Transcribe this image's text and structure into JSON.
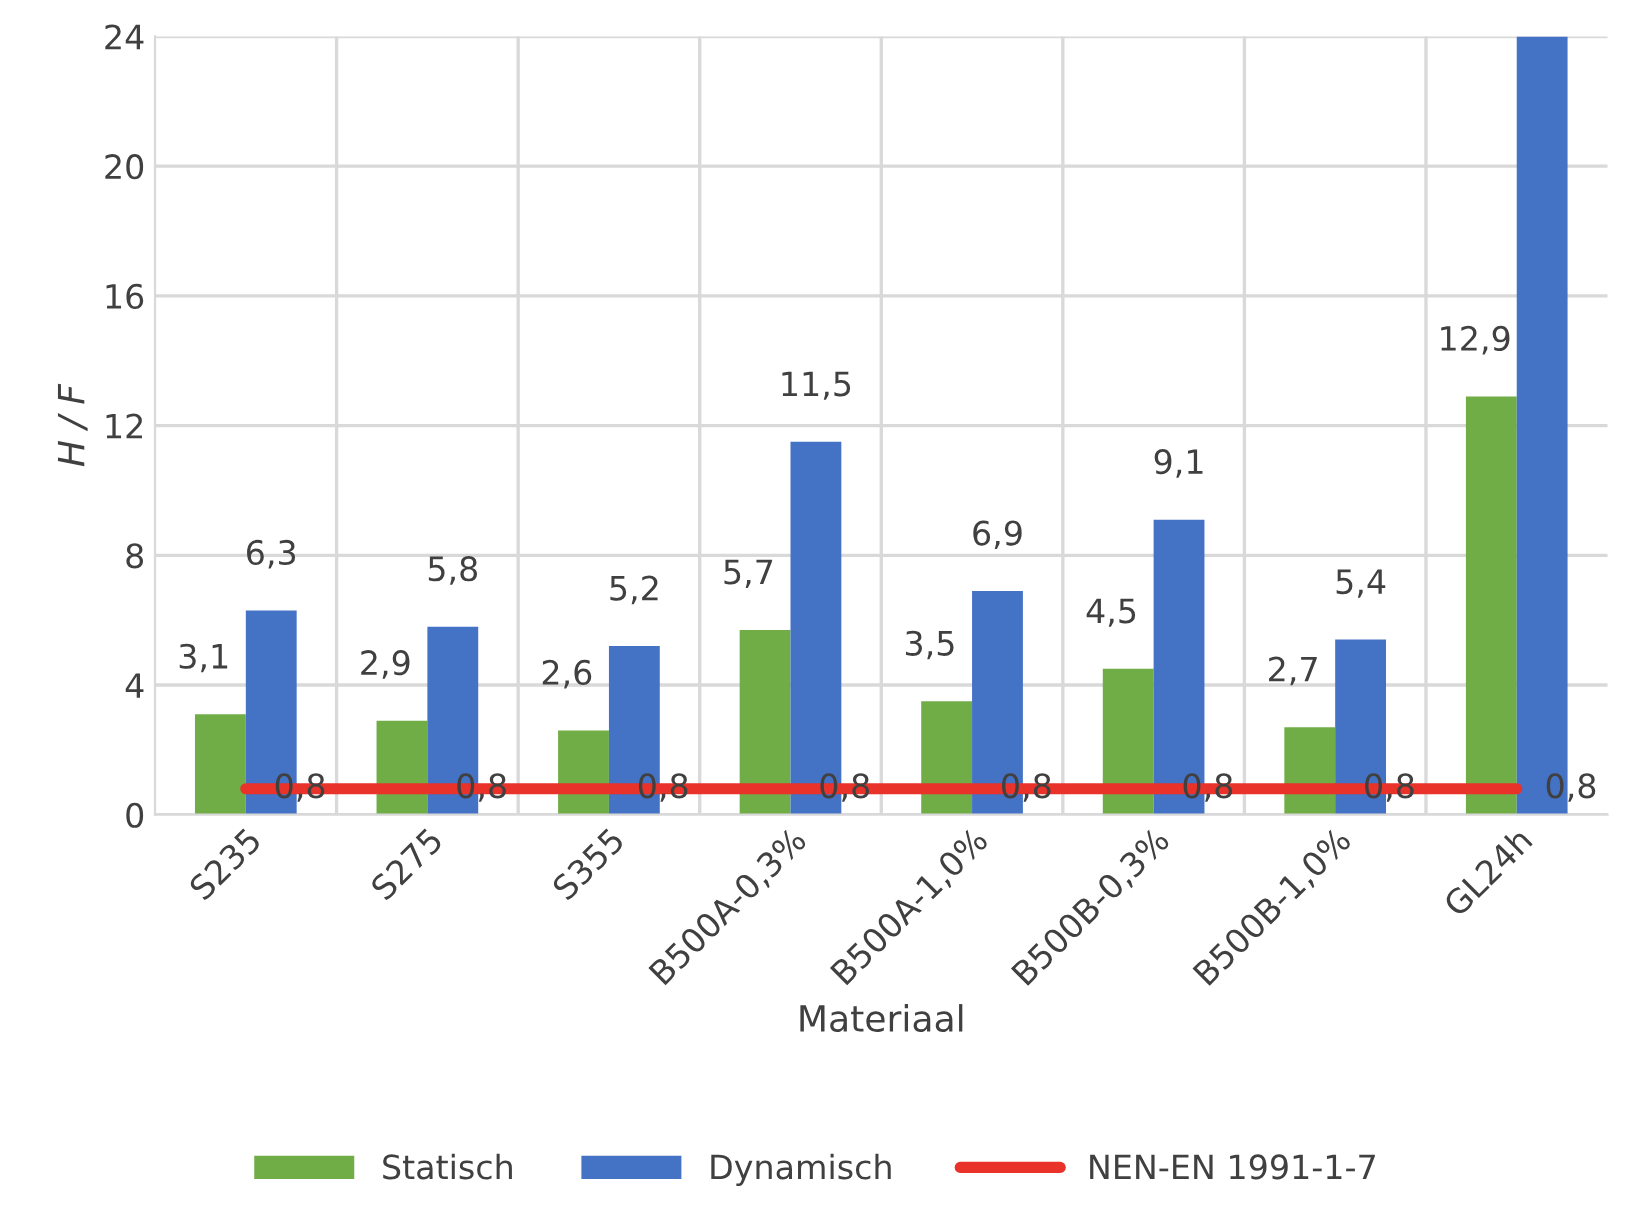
{
  "chart_data": {
    "type": "bar",
    "xlabel": "Materiaal",
    "ylabel": "H / F",
    "categories": [
      "S235",
      "S275",
      "S355",
      "B500A-0,3%",
      "B500A-1,0%",
      "B500B-0,3%",
      "B500B-1,0%",
      "GL24h"
    ],
    "series": [
      {
        "name": "Statisch",
        "color": "#70ad47",
        "values": [
          3.1,
          2.9,
          2.6,
          5.7,
          3.5,
          4.5,
          2.7,
          12.9
        ],
        "value_labels": [
          "3,1",
          "2,9",
          "2,6",
          "5,7",
          "3,5",
          "4,5",
          "2,7",
          "12,9"
        ]
      },
      {
        "name": "Dynamisch",
        "color": "#4472c4",
        "values": [
          6.3,
          5.8,
          5.2,
          11.5,
          6.9,
          9.1,
          5.4,
          24
        ],
        "value_labels": [
          "6,3",
          "5,8",
          "5,2",
          "11,5",
          "6,9",
          "9,1",
          "5,4",
          null
        ]
      },
      {
        "name": "NEN-EN 1991-1-7",
        "type": "line",
        "color": "#e8322a",
        "values": [
          0.8,
          0.8,
          0.8,
          0.8,
          0.8,
          0.8,
          0.8,
          0.8
        ],
        "value_labels": [
          "0,8",
          "0,8",
          "0,8",
          "0,8",
          "0,8",
          "0,8",
          "0,8",
          "0,8"
        ]
      }
    ],
    "ylim": [
      0,
      24
    ],
    "yticks": [
      0,
      4,
      8,
      12,
      16,
      20,
      24
    ],
    "grid": true,
    "legend": "bottom"
  }
}
